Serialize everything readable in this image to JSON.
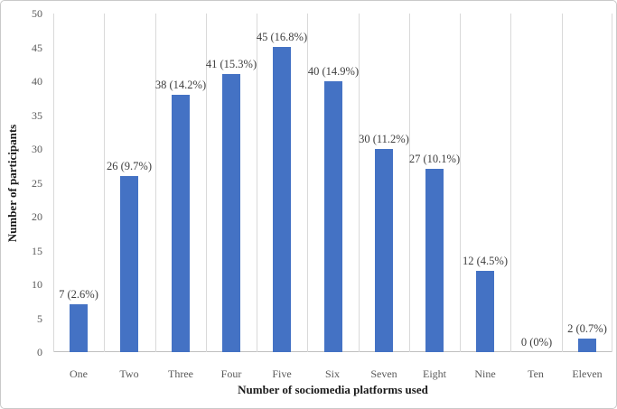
{
  "chart_data": {
    "type": "bar",
    "title": "",
    "xlabel": "Number of sociomedia platforms used",
    "ylabel": "Number of participants",
    "categories": [
      "One",
      "Two",
      "Three",
      "Four",
      "Five",
      "Six",
      "Seven",
      "Eight",
      "Nine",
      "Ten",
      "Eleven"
    ],
    "values": [
      7,
      26,
      38,
      41,
      45,
      40,
      30,
      27,
      12,
      0,
      2
    ],
    "value_labels": [
      "7 (2.6%)",
      "26 (9.7%)",
      "38 (14.2%)",
      "41 (15.3%)",
      "45 (16.8%)",
      "40 (14.9%)",
      "30 (11.2%)",
      "27 (10.1%)",
      "12 (4.5%)",
      "0 (0%)",
      "2 (0.7%)"
    ],
    "ylim": [
      0,
      50
    ],
    "ytick_step": 5,
    "ytick_labels": [
      "0",
      "5",
      "10",
      "15",
      "20",
      "25",
      "30",
      "35",
      "40",
      "45",
      "50"
    ],
    "grid": "vertical-major-only",
    "legend": "none",
    "bar_color": "#4472C4",
    "gridline_color": "#D9D9D9",
    "axis_line_color": "#BFBFBF",
    "tick_label_color": "#595959",
    "value_label_color": "#3D3D3D",
    "axis_title_color": "#1A1A1A"
  }
}
